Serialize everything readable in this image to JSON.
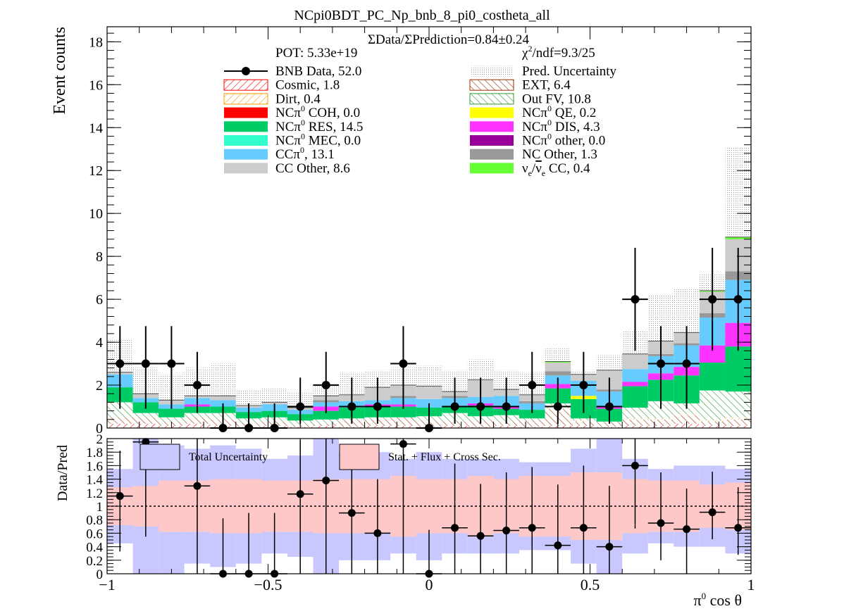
{
  "title": "NCpi0BDT_PC_Np_bnb_8_pi0_costheta_all",
  "header": {
    "ratio_text": "ΣData/ΣPrediction=0.84±0.24",
    "pot_text": "POT: 5.33e+19",
    "chi2_label": "χ",
    "chi2_sup": "2",
    "chi2_rest": "/ndf=9.3/25"
  },
  "colors": {
    "data": "#000000",
    "cosmic": "#ff0000",
    "dirt": "#ff9900",
    "coh": "#ff0000",
    "res": "#00cc66",
    "mec": "#33ffcc",
    "cc": "#66ccff",
    "ccother": "#cccccc",
    "ext": "#993300",
    "outfv": "#339933",
    "qe": "#ffff00",
    "dis": "#ff33ff",
    "ncpiother": "#990099",
    "ncother": "#999999",
    "nuecc": "#66ff33",
    "pred_unc": "#bbbbbb",
    "total_unc": "#c8c8ff",
    "stat_unc": "#ffc8c8"
  },
  "chart_data": [
    {
      "type": "bar",
      "stacked": true,
      "title": "NCpi0BDT_PC_Np_bnb_8_pi0_costheta_all",
      "xlabel": "",
      "ylabel": "Event counts",
      "xlim": [
        -1,
        1
      ],
      "ylim": [
        0,
        18.7
      ],
      "yticks": [
        0,
        2,
        4,
        6,
        8,
        10,
        12,
        14,
        16,
        18
      ],
      "legend_left": [
        {
          "label": "BNB Data, 52.0",
          "style": "marker",
          "color_key": "data"
        },
        {
          "label": "Cosmic, 1.8",
          "style": "hatch",
          "color_key": "cosmic"
        },
        {
          "label": "Dirt, 0.4",
          "style": "hatch",
          "color_key": "dirt"
        },
        {
          "label": "NCπ0 COH,  0.0",
          "pre": "NCπ",
          "sup": "0",
          "post": " COH,  0.0",
          "style": "fill",
          "color_key": "coh"
        },
        {
          "label": "NCπ0 RES,  14.5",
          "pre": "NCπ",
          "sup": "0",
          "post": " RES,  14.5",
          "style": "fill",
          "color_key": "res"
        },
        {
          "label": "NCπ0 MEC,  0.0",
          "pre": "NCπ",
          "sup": "0",
          "post": " MEC,  0.0",
          "style": "fill",
          "color_key": "mec"
        },
        {
          "label": "CCπ0, 13.1",
          "pre": "CCπ",
          "sup": "0",
          "post": ", 13.1",
          "style": "fill",
          "color_key": "cc"
        },
        {
          "label": "CC Other, 8.6",
          "style": "fill",
          "color_key": "ccother"
        }
      ],
      "legend_right": [
        {
          "label": "Pred. Uncertainty",
          "style": "dots",
          "color_key": "pred_unc"
        },
        {
          "label": "EXT, 6.4",
          "style": "hatch",
          "color_key": "ext"
        },
        {
          "label": "Out FV, 10.8",
          "style": "hatch",
          "color_key": "outfv"
        },
        {
          "label": "NCπ0 QE,  0.2",
          "pre": "NCπ",
          "sup": "0",
          "post": " QE,  0.2",
          "style": "fill",
          "color_key": "qe"
        },
        {
          "label": "NCπ0 DIS,  4.3",
          "pre": "NCπ",
          "sup": "0",
          "post": " DIS,  4.3",
          "style": "fill",
          "color_key": "dis"
        },
        {
          "label": "NCπ0 other,  0.0",
          "pre": "NCπ",
          "sup": "0",
          "post": " other,  0.0",
          "style": "fill",
          "color_key": "ncpiother"
        },
        {
          "label": "NC Other, 1.3",
          "style": "fill",
          "color_key": "ncother"
        },
        {
          "label": "νe/ν̄e CC, 0.4",
          "style": "fill",
          "color_key": "nuecc",
          "special": "nue"
        }
      ],
      "bin_edges": [
        -1.0,
        -0.92,
        -0.84,
        -0.76,
        -0.68,
        -0.6,
        -0.52,
        -0.44,
        -0.36,
        -0.28,
        -0.2,
        -0.12,
        -0.04,
        0.04,
        0.12,
        0.2,
        0.28,
        0.36,
        0.44,
        0.52,
        0.6,
        0.68,
        0.76,
        0.84,
        0.92,
        1.0
      ],
      "stack_order": [
        "cosmic",
        "ext",
        "dirt",
        "outfv",
        "res",
        "dis",
        "qe",
        "cc",
        "ncother",
        "ccother",
        "nuecc"
      ],
      "components": {
        "cosmic": [
          0.2,
          0.2,
          0.1,
          0.2,
          0.1,
          0.05,
          0.1,
          0.05,
          0.1,
          0.05,
          0.1,
          0.1,
          0.05,
          0.1,
          0.05,
          0.1,
          0.05,
          0.1,
          0.1,
          0.05,
          0.1,
          0.1,
          0.2,
          0.1,
          0.1
        ],
        "ext": [
          0.3,
          0.3,
          0.2,
          0.3,
          0.3,
          0.2,
          0.2,
          0.1,
          0.1,
          0.3,
          0.3,
          0.4,
          0.3,
          0.2,
          0.3,
          0.2,
          0.3,
          0.8,
          0.2,
          0.2,
          0.3,
          0.3,
          0.4,
          0.2,
          0.3
        ],
        "dirt": [
          0.0,
          0.0,
          0.0,
          0.0,
          0.0,
          0.0,
          0.0,
          0.0,
          0.0,
          0.0,
          0.0,
          0.0,
          0.0,
          0.0,
          0.0,
          0.0,
          0.0,
          0.05,
          0.05,
          0.0,
          0.05,
          0.05,
          0.05,
          0.05,
          0.1
        ],
        "outfv": [
          0.7,
          0.2,
          0.2,
          0.2,
          0.3,
          0.2,
          0.2,
          0.2,
          0.2,
          0.1,
          0.1,
          0.0,
          0.2,
          0.4,
          0.2,
          0.3,
          0.1,
          0.2,
          0.1,
          0.05,
          0.5,
          0.8,
          0.5,
          1.4,
          1.2
        ],
        "res": [
          0.7,
          0.5,
          0.4,
          0.3,
          0.3,
          0.3,
          0.3,
          0.3,
          0.4,
          0.5,
          0.5,
          0.5,
          0.4,
          0.3,
          0.5,
          0.3,
          0.4,
          0.7,
          0.9,
          0.6,
          1.0,
          1.0,
          1.3,
          1.3,
          2.1
        ],
        "dis": [
          0.0,
          0.0,
          0.0,
          0.1,
          0.0,
          0.0,
          0.0,
          0.0,
          0.2,
          0.0,
          0.1,
          0.1,
          0.0,
          0.0,
          0.1,
          0.1,
          0.0,
          0.2,
          0.0,
          0.1,
          0.2,
          0.3,
          0.4,
          0.8,
          1.1
        ],
        "qe": [
          0.0,
          0.0,
          0.0,
          0.0,
          0.0,
          0.0,
          0.0,
          0.0,
          0.0,
          0.0,
          0.0,
          0.0,
          0.0,
          0.0,
          0.0,
          0.0,
          0.0,
          0.0,
          0.15,
          0.0,
          0.0,
          0.0,
          0.0,
          0.0,
          0.0
        ],
        "cc": [
          0.6,
          0.2,
          0.2,
          0.3,
          0.3,
          0.2,
          0.3,
          0.2,
          0.2,
          0.3,
          0.2,
          0.3,
          0.4,
          0.4,
          0.3,
          0.5,
          0.3,
          0.4,
          0.7,
          0.7,
          0.6,
          0.8,
          1.0,
          1.3,
          2.0
        ],
        "ncother": [
          0.0,
          0.0,
          0.0,
          0.0,
          0.0,
          0.0,
          0.0,
          0.0,
          0.1,
          0.0,
          0.0,
          0.1,
          0.0,
          0.1,
          0.0,
          0.0,
          0.1,
          0.2,
          0.0,
          0.1,
          0.0,
          0.1,
          0.1,
          0.2,
          0.4
        ],
        "ccother": [
          0.1,
          0.2,
          0.2,
          0.1,
          0.2,
          0.1,
          0.1,
          0.1,
          0.2,
          0.3,
          0.6,
          0.5,
          0.6,
          0.2,
          0.8,
          0.3,
          0.3,
          0.4,
          0.3,
          0.9,
          0.7,
          0.6,
          0.5,
          1.0,
          1.5
        ],
        "nuecc": [
          0.0,
          0.0,
          0.0,
          0.0,
          0.0,
          0.0,
          0.0,
          0.0,
          0.0,
          0.0,
          0.0,
          0.0,
          0.0,
          0.0,
          0.0,
          0.0,
          0.0,
          0.05,
          0.0,
          0.0,
          0.0,
          0.0,
          0.0,
          0.05,
          0.1
        ]
      },
      "pred_uncertainty_top": [
        4.1,
        2.8,
        2.5,
        2.8,
        3.0,
        1.8,
        1.9,
        1.7,
        2.1,
        2.6,
        2.7,
        2.8,
        2.9,
        2.7,
        3.2,
        2.7,
        2.6,
        3.7,
        2.7,
        3.4,
        4.5,
        6.2,
        6.5,
        7.2,
        13.1
      ],
      "data": {
        "x": [
          -0.96,
          -0.88,
          -0.8,
          -0.72,
          -0.64,
          -0.56,
          -0.48,
          -0.4,
          -0.32,
          -0.24,
          -0.16,
          -0.08,
          0.0,
          0.08,
          0.16,
          0.24,
          0.32,
          0.4,
          0.48,
          0.56,
          0.64,
          0.72,
          0.8,
          0.88,
          0.96
        ],
        "y": [
          3,
          3,
          3,
          2,
          0,
          0,
          0,
          1,
          2,
          1,
          1,
          3,
          0,
          1,
          1,
          1,
          2,
          1,
          2,
          1,
          6,
          3,
          3,
          6,
          6
        ],
        "yerr_up": [
          1.75,
          1.75,
          1.75,
          1.55,
          1.15,
          1.15,
          1.15,
          1.35,
          1.55,
          1.35,
          1.35,
          1.75,
          1.15,
          1.35,
          1.35,
          1.35,
          1.55,
          1.35,
          1.55,
          1.35,
          2.4,
          1.75,
          1.75,
          2.4,
          2.4
        ],
        "yerr_down": [
          2.1,
          2.1,
          2.1,
          1.3,
          0,
          0,
          0,
          0.8,
          1.3,
          0.8,
          0.8,
          2.1,
          0,
          0.8,
          0.8,
          0.8,
          1.3,
          0.8,
          1.3,
          0.8,
          2.4,
          2.1,
          2.1,
          2.4,
          2.4
        ]
      }
    },
    {
      "type": "scatter",
      "title": "",
      "xlabel": "π0 cos θ",
      "ylabel": "Data/Pred",
      "xlim": [
        -1,
        1
      ],
      "ylim": [
        0,
        2
      ],
      "yticks": [
        0,
        0.2,
        0.4,
        0.6,
        0.8,
        1,
        1.2,
        1.4,
        1.6,
        1.8,
        2
      ],
      "ytick_labels": [
        "0",
        "0.2",
        "0.4",
        "0.6",
        "0.8",
        "1",
        "1.2",
        "1.4",
        "1.6",
        "1.8",
        "2"
      ],
      "xticks": [
        -1,
        -0.5,
        0,
        0.5,
        1
      ],
      "xtick_labels": [
        "−1",
        "−0.5",
        "0",
        "0.5",
        "1"
      ],
      "legend": [
        {
          "label": "Total Uncertainty",
          "color_key": "total_unc"
        },
        {
          "label": "Stat. + Flux + Cross Sec.",
          "color_key": "stat_unc"
        }
      ],
      "total_unc_band": {
        "low": [
          0.45,
          0.0,
          0.0,
          0.15,
          0.1,
          0.15,
          0.3,
          0.25,
          0.0,
          0.2,
          0.2,
          0.3,
          0.2,
          0.3,
          0.3,
          0.3,
          0.35,
          0.35,
          0.15,
          0.0,
          0.3,
          0.45,
          0.4,
          0.4,
          0.3
        ],
        "high": [
          1.55,
          2.0,
          1.9,
          1.85,
          1.9,
          1.85,
          1.7,
          1.75,
          2.0,
          1.8,
          1.8,
          1.7,
          1.8,
          1.7,
          1.7,
          1.7,
          1.65,
          1.65,
          1.85,
          2.0,
          1.7,
          1.55,
          1.6,
          1.6,
          1.55
        ]
      },
      "stat_unc_band": {
        "low": [
          0.72,
          0.7,
          0.62,
          0.62,
          0.6,
          0.6,
          0.62,
          0.62,
          0.6,
          0.6,
          0.6,
          0.55,
          0.6,
          0.6,
          0.55,
          0.6,
          0.55,
          0.55,
          0.5,
          0.5,
          0.6,
          0.62,
          0.62,
          0.68,
          0.65
        ],
        "high": [
          1.28,
          1.3,
          1.38,
          1.38,
          1.4,
          1.4,
          1.38,
          1.38,
          1.4,
          1.4,
          1.4,
          1.45,
          1.4,
          1.4,
          1.45,
          1.4,
          1.45,
          1.45,
          1.5,
          1.5,
          1.4,
          1.38,
          1.38,
          1.32,
          1.35
        ]
      },
      "data": {
        "x": [
          -0.96,
          -0.88,
          -0.72,
          -0.64,
          -0.56,
          -0.48,
          -0.4,
          -0.32,
          -0.24,
          -0.16,
          -0.08,
          0.0,
          0.08,
          0.16,
          0.24,
          0.32,
          0.4,
          0.48,
          0.56,
          0.64,
          0.72,
          0.8,
          0.88,
          0.96
        ],
        "y": [
          1.15,
          1.95,
          1.3,
          0.0,
          0.0,
          0.0,
          1.18,
          1.38,
          0.9,
          0.6,
          1.92,
          0.0,
          0.68,
          0.56,
          0.64,
          0.68,
          0.42,
          0.68,
          0.4,
          1.6,
          0.75,
          0.66,
          0.91,
          0.68
        ],
        "yerr_up": [
          0.67,
          0.2,
          0.75,
          0.82,
          0.9,
          0.9,
          0.8,
          0.9,
          0.9,
          0.8,
          0.1,
          0.65,
          0.95,
          0.77,
          0.86,
          0.9,
          0.9,
          0.92,
          0.9,
          0.6,
          0.75,
          0.6,
          0.6,
          0.6
        ],
        "yerr_down": [
          0.82,
          1.4,
          1.3,
          0,
          0,
          0,
          1.18,
          1.38,
          0.9,
          0.6,
          1.92,
          0,
          0.68,
          0.56,
          0.64,
          0.68,
          0.42,
          0.68,
          0.4,
          0.93,
          0.55,
          0.66,
          0.4,
          0.4
        ]
      }
    }
  ]
}
